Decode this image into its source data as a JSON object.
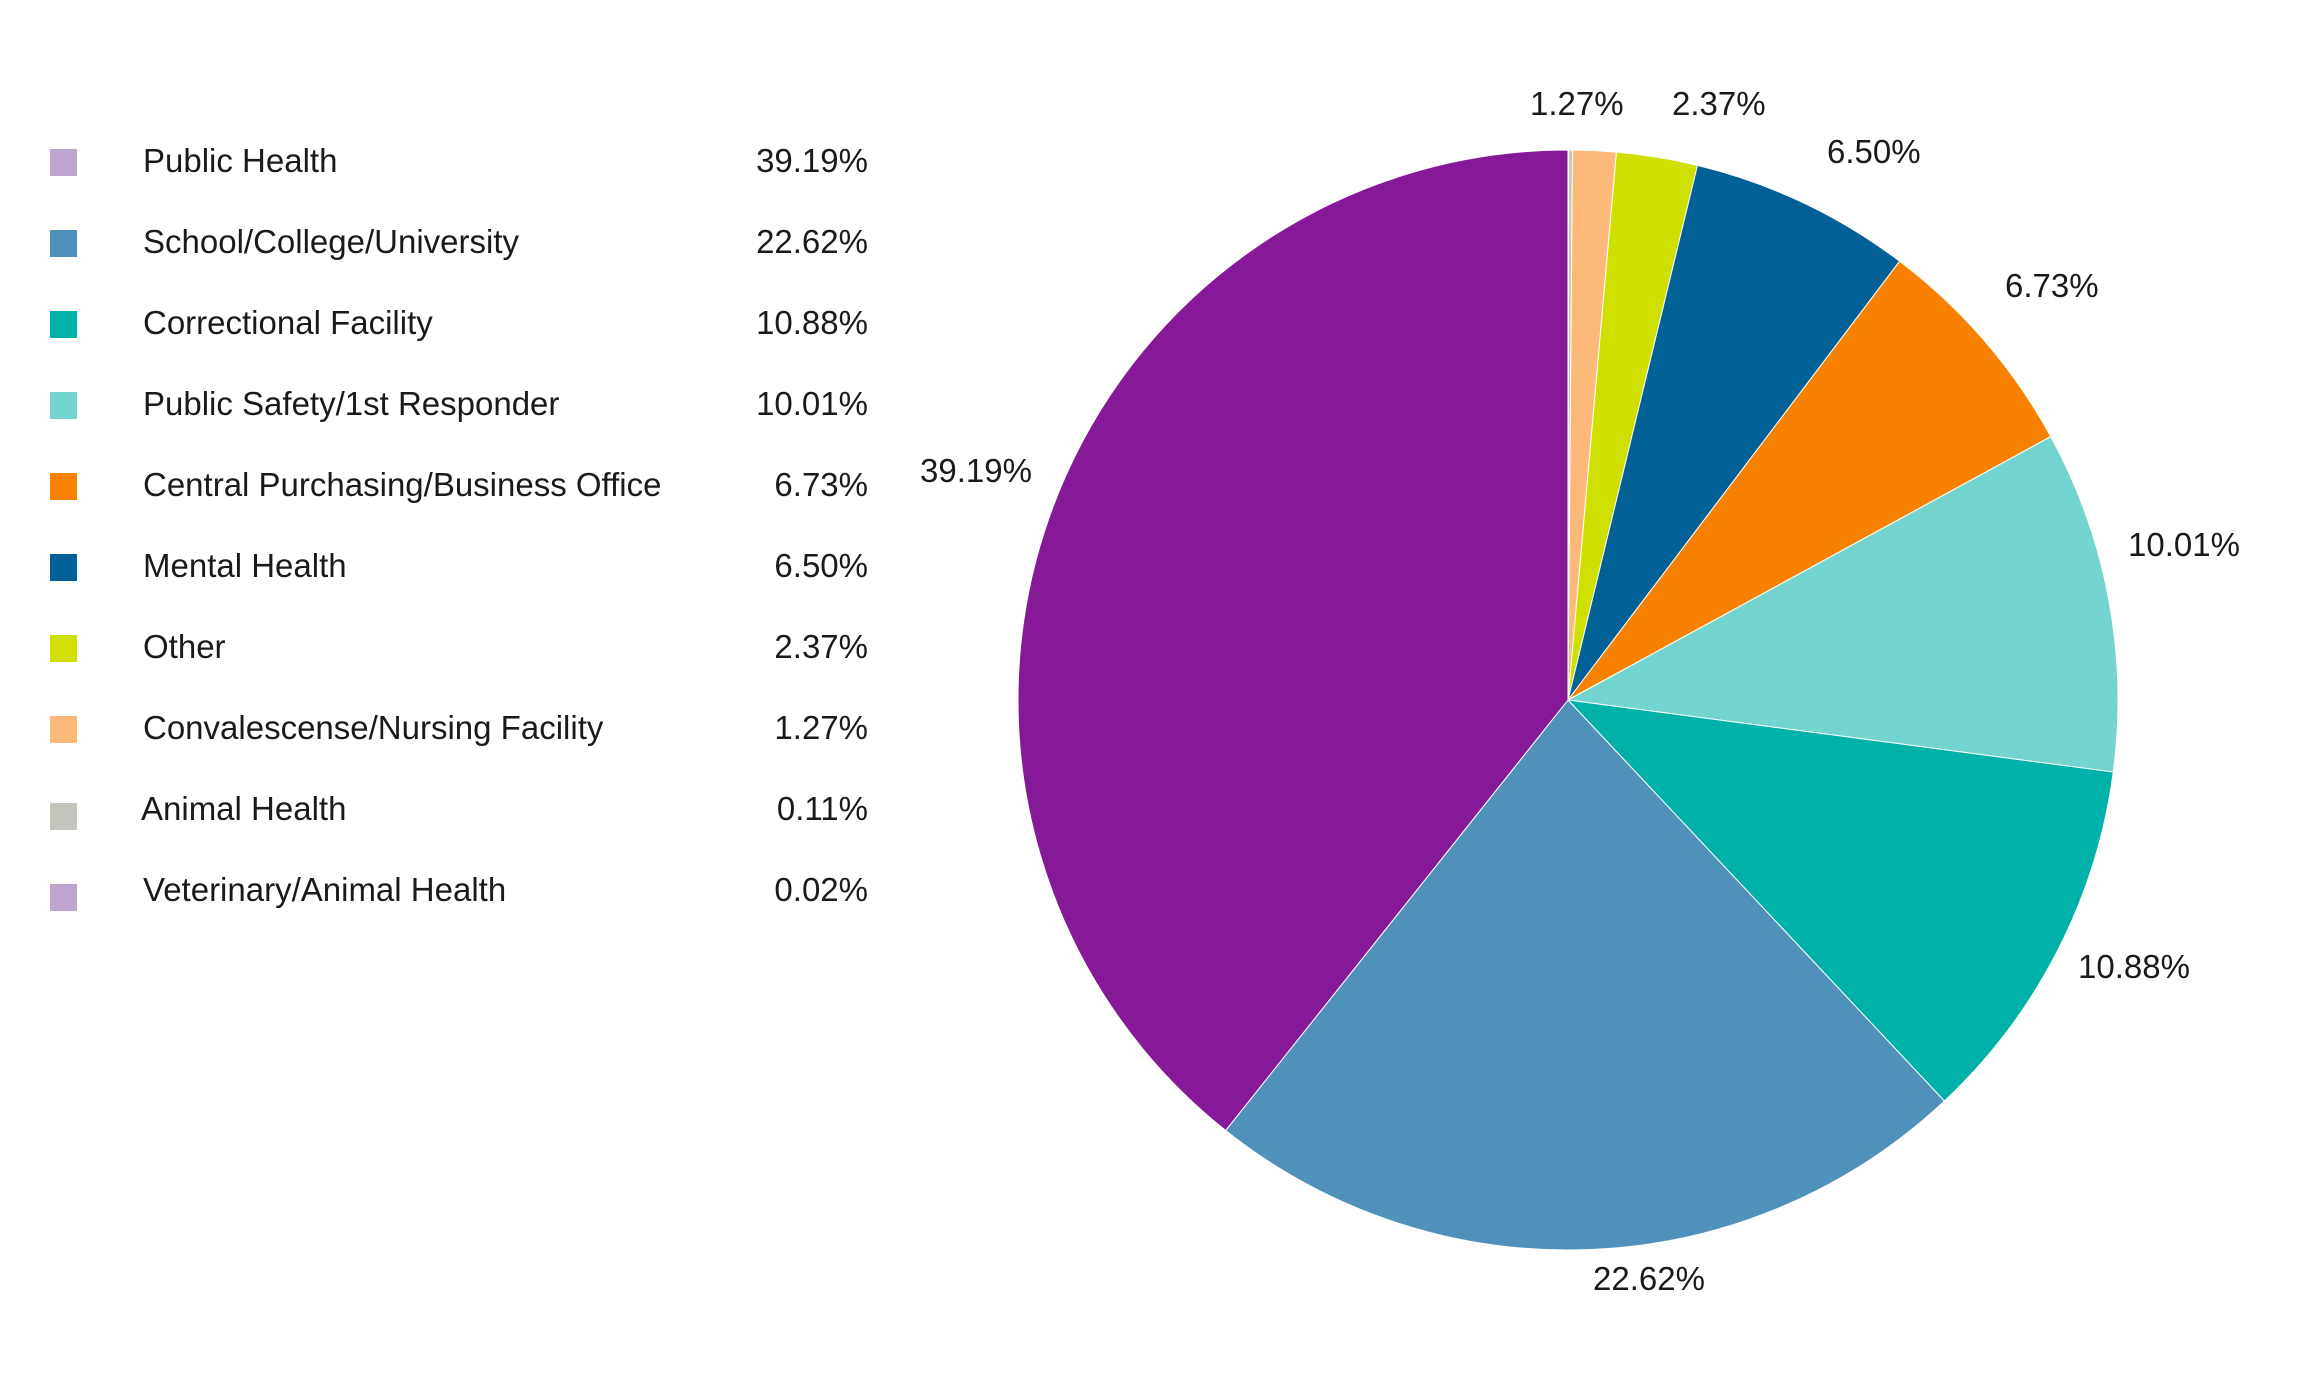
{
  "chart_data": {
    "type": "pie",
    "title": "",
    "legend_position": "left",
    "slices": [
      {
        "label": "Public Health",
        "value": 39.19,
        "display": "39.19%",
        "color": "#851997",
        "swatch_color": "#bda5cf"
      },
      {
        "label": "School/College/University",
        "value": 22.62,
        "display": "22.62%",
        "color": "#4f91ba",
        "swatch_color": "#4f91ba"
      },
      {
        "label": "Correctional Facility",
        "value": 10.88,
        "display": "10.88%",
        "color": "#00b1aa",
        "swatch_color": "#00b1aa"
      },
      {
        "label": "Public Safety/1st Responder",
        "value": 10.01,
        "display": "10.01%",
        "color": "#74d5d0",
        "swatch_color": "#74d5d0"
      },
      {
        "label": "Central Purchasing/Business Office",
        "value": 6.73,
        "display": "6.73%",
        "color": "#f88200",
        "swatch_color": "#f88200"
      },
      {
        "label": "Mental Health",
        "value": 6.5,
        "display": "6.50%",
        "color": "#016096",
        "swatch_color": "#016096"
      },
      {
        "label": "Other",
        "value": 2.37,
        "display": "2.37%",
        "color": "#cfdf00",
        "swatch_color": "#cfdf00"
      },
      {
        "label": "Convalescense/Nursing Facility",
        "value": 1.27,
        "display": "1.27%",
        "color": "#fdb979",
        "swatch_color": "#fdb979"
      },
      {
        "label": "Animal Health",
        "value": 0.11,
        "display": "0.11%",
        "color": "#c4c4bd",
        "swatch_color": "#c4c4bd"
      },
      {
        "label": "Veterinary/Animal Health",
        "value": 0.02,
        "display": "0.02%",
        "color": "#bda5cf",
        "swatch_color": "#bda5cf"
      }
    ]
  }
}
